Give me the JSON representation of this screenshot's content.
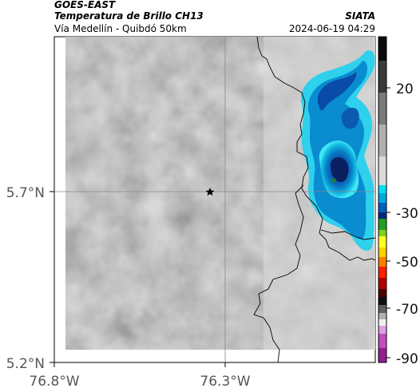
{
  "header": {
    "satellite": "GOES-EAST",
    "product": "Temperatura de Brillo CH13",
    "region": "Vía Medellín - Quibdó 50km",
    "brand": "SIATA",
    "timestamp": "2024-06-19 04:29"
  },
  "map": {
    "lat_labels": [
      "5.7°N",
      "5.2°N"
    ],
    "lon_labels": [
      "76.8°W",
      "76.3°W"
    ],
    "marker": "star"
  },
  "colorbar": {
    "tick_labels": [
      "20",
      "-30",
      "-50",
      "-70",
      "-90"
    ],
    "colors": [
      "#000000",
      "#555555",
      "#aaaaaa",
      "#e0e0e0",
      "#00ffff",
      "#0090d0",
      "#002a80",
      "#008000",
      "#ffff00",
      "#ff8000",
      "#e00000",
      "#600000",
      "#cc44cc"
    ]
  }
}
